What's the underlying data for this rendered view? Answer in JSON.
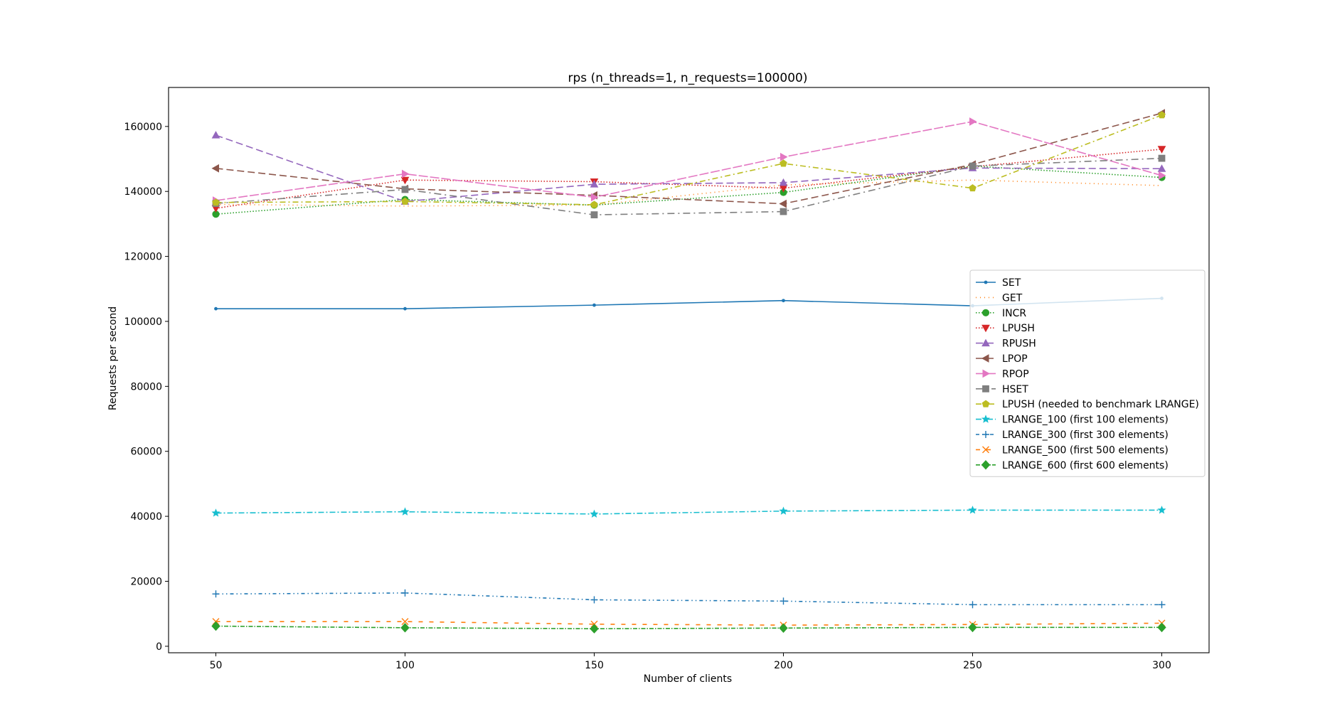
{
  "chart_data": {
    "type": "line",
    "title": "rps (n_threads=1, n_requests=100000)",
    "xlabel": "Number of clients",
    "ylabel": "Requests per second",
    "x": [
      50,
      100,
      150,
      200,
      250,
      300
    ],
    "xlim": [
      37.5,
      312.5
    ],
    "ylim": [
      -2000,
      172000
    ],
    "xticks": [
      50,
      100,
      150,
      200,
      250,
      300
    ],
    "yticks": [
      0,
      20000,
      40000,
      60000,
      80000,
      100000,
      120000,
      140000,
      160000
    ],
    "grid": false,
    "legend_position": "center-right",
    "series": [
      {
        "name": "SET",
        "color": "#1f77b4",
        "dash": "",
        "marker": "point",
        "values": [
          103900,
          103900,
          105000,
          106400,
          104800,
          107100
        ]
      },
      {
        "name": "GET",
        "color": "#ff7f0e",
        "dash": "1,5",
        "marker": "none",
        "values": [
          136000,
          135500,
          135800,
          142000,
          143500,
          141800
        ]
      },
      {
        "name": "INCR",
        "color": "#2ca02c",
        "dash": "1.5,2.5",
        "marker": "circle",
        "values": [
          133000,
          137500,
          135800,
          139700,
          147800,
          144300
        ]
      },
      {
        "name": "LPUSH",
        "color": "#d62728",
        "dash": "1.5,2.5",
        "marker": "triangle-down",
        "values": [
          134800,
          143500,
          143000,
          141000,
          147600,
          153000
        ]
      },
      {
        "name": "RPUSH",
        "color": "#9467bd",
        "dash": "10,5",
        "marker": "triangle-up",
        "values": [
          157300,
          136900,
          142200,
          142700,
          147200,
          147000
        ]
      },
      {
        "name": "LPOP",
        "color": "#8c564b",
        "dash": "10,5",
        "marker": "triangle-left",
        "values": [
          147100,
          140800,
          138800,
          136200,
          148300,
          164100
        ]
      },
      {
        "name": "RPOP",
        "color": "#e377c2",
        "dash": "13,3",
        "marker": "triangle-right",
        "values": [
          137200,
          145400,
          138200,
          150600,
          161500,
          144900
        ]
      },
      {
        "name": "HSET",
        "color": "#7f7f7f",
        "dash": "10,5,2,5",
        "marker": "square",
        "values": [
          136300,
          140600,
          132800,
          133800,
          147800,
          150200
        ]
      },
      {
        "name": "LPUSH (needed to benchmark LRANGE)",
        "color": "#bcbd22",
        "dash": "8,4,2,4",
        "marker": "pentagon",
        "values": [
          136600,
          136900,
          135900,
          148600,
          141000,
          163500
        ]
      },
      {
        "name": "LRANGE_100 (first 100 elements)",
        "color": "#17becf",
        "dash": "8,3,2,3",
        "marker": "star",
        "values": [
          41000,
          41400,
          40700,
          41600,
          41900,
          41900
        ]
      },
      {
        "name": "LRANGE_300 (first 300 elements)",
        "color": "#1f77b4",
        "dash": "5,4,1.5,4,1.5,4",
        "marker": "plus",
        "values": [
          16100,
          16400,
          14300,
          13900,
          12800,
          12800
        ]
      },
      {
        "name": "LRANGE_500 (first 500 elements)",
        "color": "#ff7f0e",
        "dash": "6,9",
        "marker": "x",
        "values": [
          7600,
          7600,
          6800,
          6500,
          6700,
          7100
        ]
      },
      {
        "name": "LRANGE_600 (first 600 elements)",
        "color": "#2ca02c",
        "dash": "6,2,1.5,2",
        "marker": "diamond",
        "values": [
          6200,
          5700,
          5400,
          5600,
          5800,
          5800
        ]
      }
    ]
  }
}
